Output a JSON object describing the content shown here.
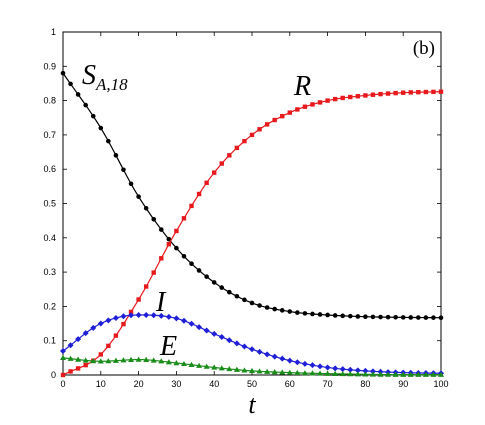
{
  "chart_data": {
    "type": "line",
    "panel_label": "(b)",
    "xlabel": "t",
    "ylabel": "",
    "xlim": [
      0,
      100
    ],
    "ylim": [
      0,
      1
    ],
    "xticks": [
      0,
      10,
      20,
      30,
      40,
      50,
      60,
      70,
      80,
      90,
      100
    ],
    "yticks": [
      0,
      0.1,
      0.2,
      0.3,
      0.4,
      0.5,
      0.6,
      0.7,
      0.8,
      0.9,
      1
    ],
    "grid": false,
    "legend": "none",
    "x": [
      0,
      10,
      20,
      30,
      40,
      50,
      60,
      70,
      80,
      90,
      100
    ],
    "series": [
      {
        "name": "S_{A,18}",
        "annotation": {
          "main": "S",
          "sub": "A,18"
        },
        "color": "#000000",
        "marker": "circle",
        "values": [
          0.88,
          0.72,
          0.52,
          0.37,
          0.27,
          0.21,
          0.185,
          0.175,
          0.17,
          0.168,
          0.167
        ]
      },
      {
        "name": "R",
        "annotation": {
          "main": "R"
        },
        "color": "#e8191c",
        "marker": "square",
        "values": [
          0.0,
          0.06,
          0.22,
          0.42,
          0.59,
          0.7,
          0.765,
          0.8,
          0.815,
          0.823,
          0.826
        ]
      },
      {
        "name": "I",
        "annotation": {
          "main": "I"
        },
        "color": "#1f1fd8",
        "marker": "diamond",
        "values": [
          0.07,
          0.15,
          0.175,
          0.165,
          0.12,
          0.075,
          0.042,
          0.022,
          0.012,
          0.007,
          0.005
        ]
      },
      {
        "name": "E",
        "annotation": {
          "main": "E"
        },
        "color": "#1a8c1a",
        "marker": "triangle",
        "values": [
          0.05,
          0.04,
          0.045,
          0.035,
          0.022,
          0.012,
          0.007,
          0.004,
          0.002,
          0.001,
          0.001
        ]
      }
    ]
  }
}
